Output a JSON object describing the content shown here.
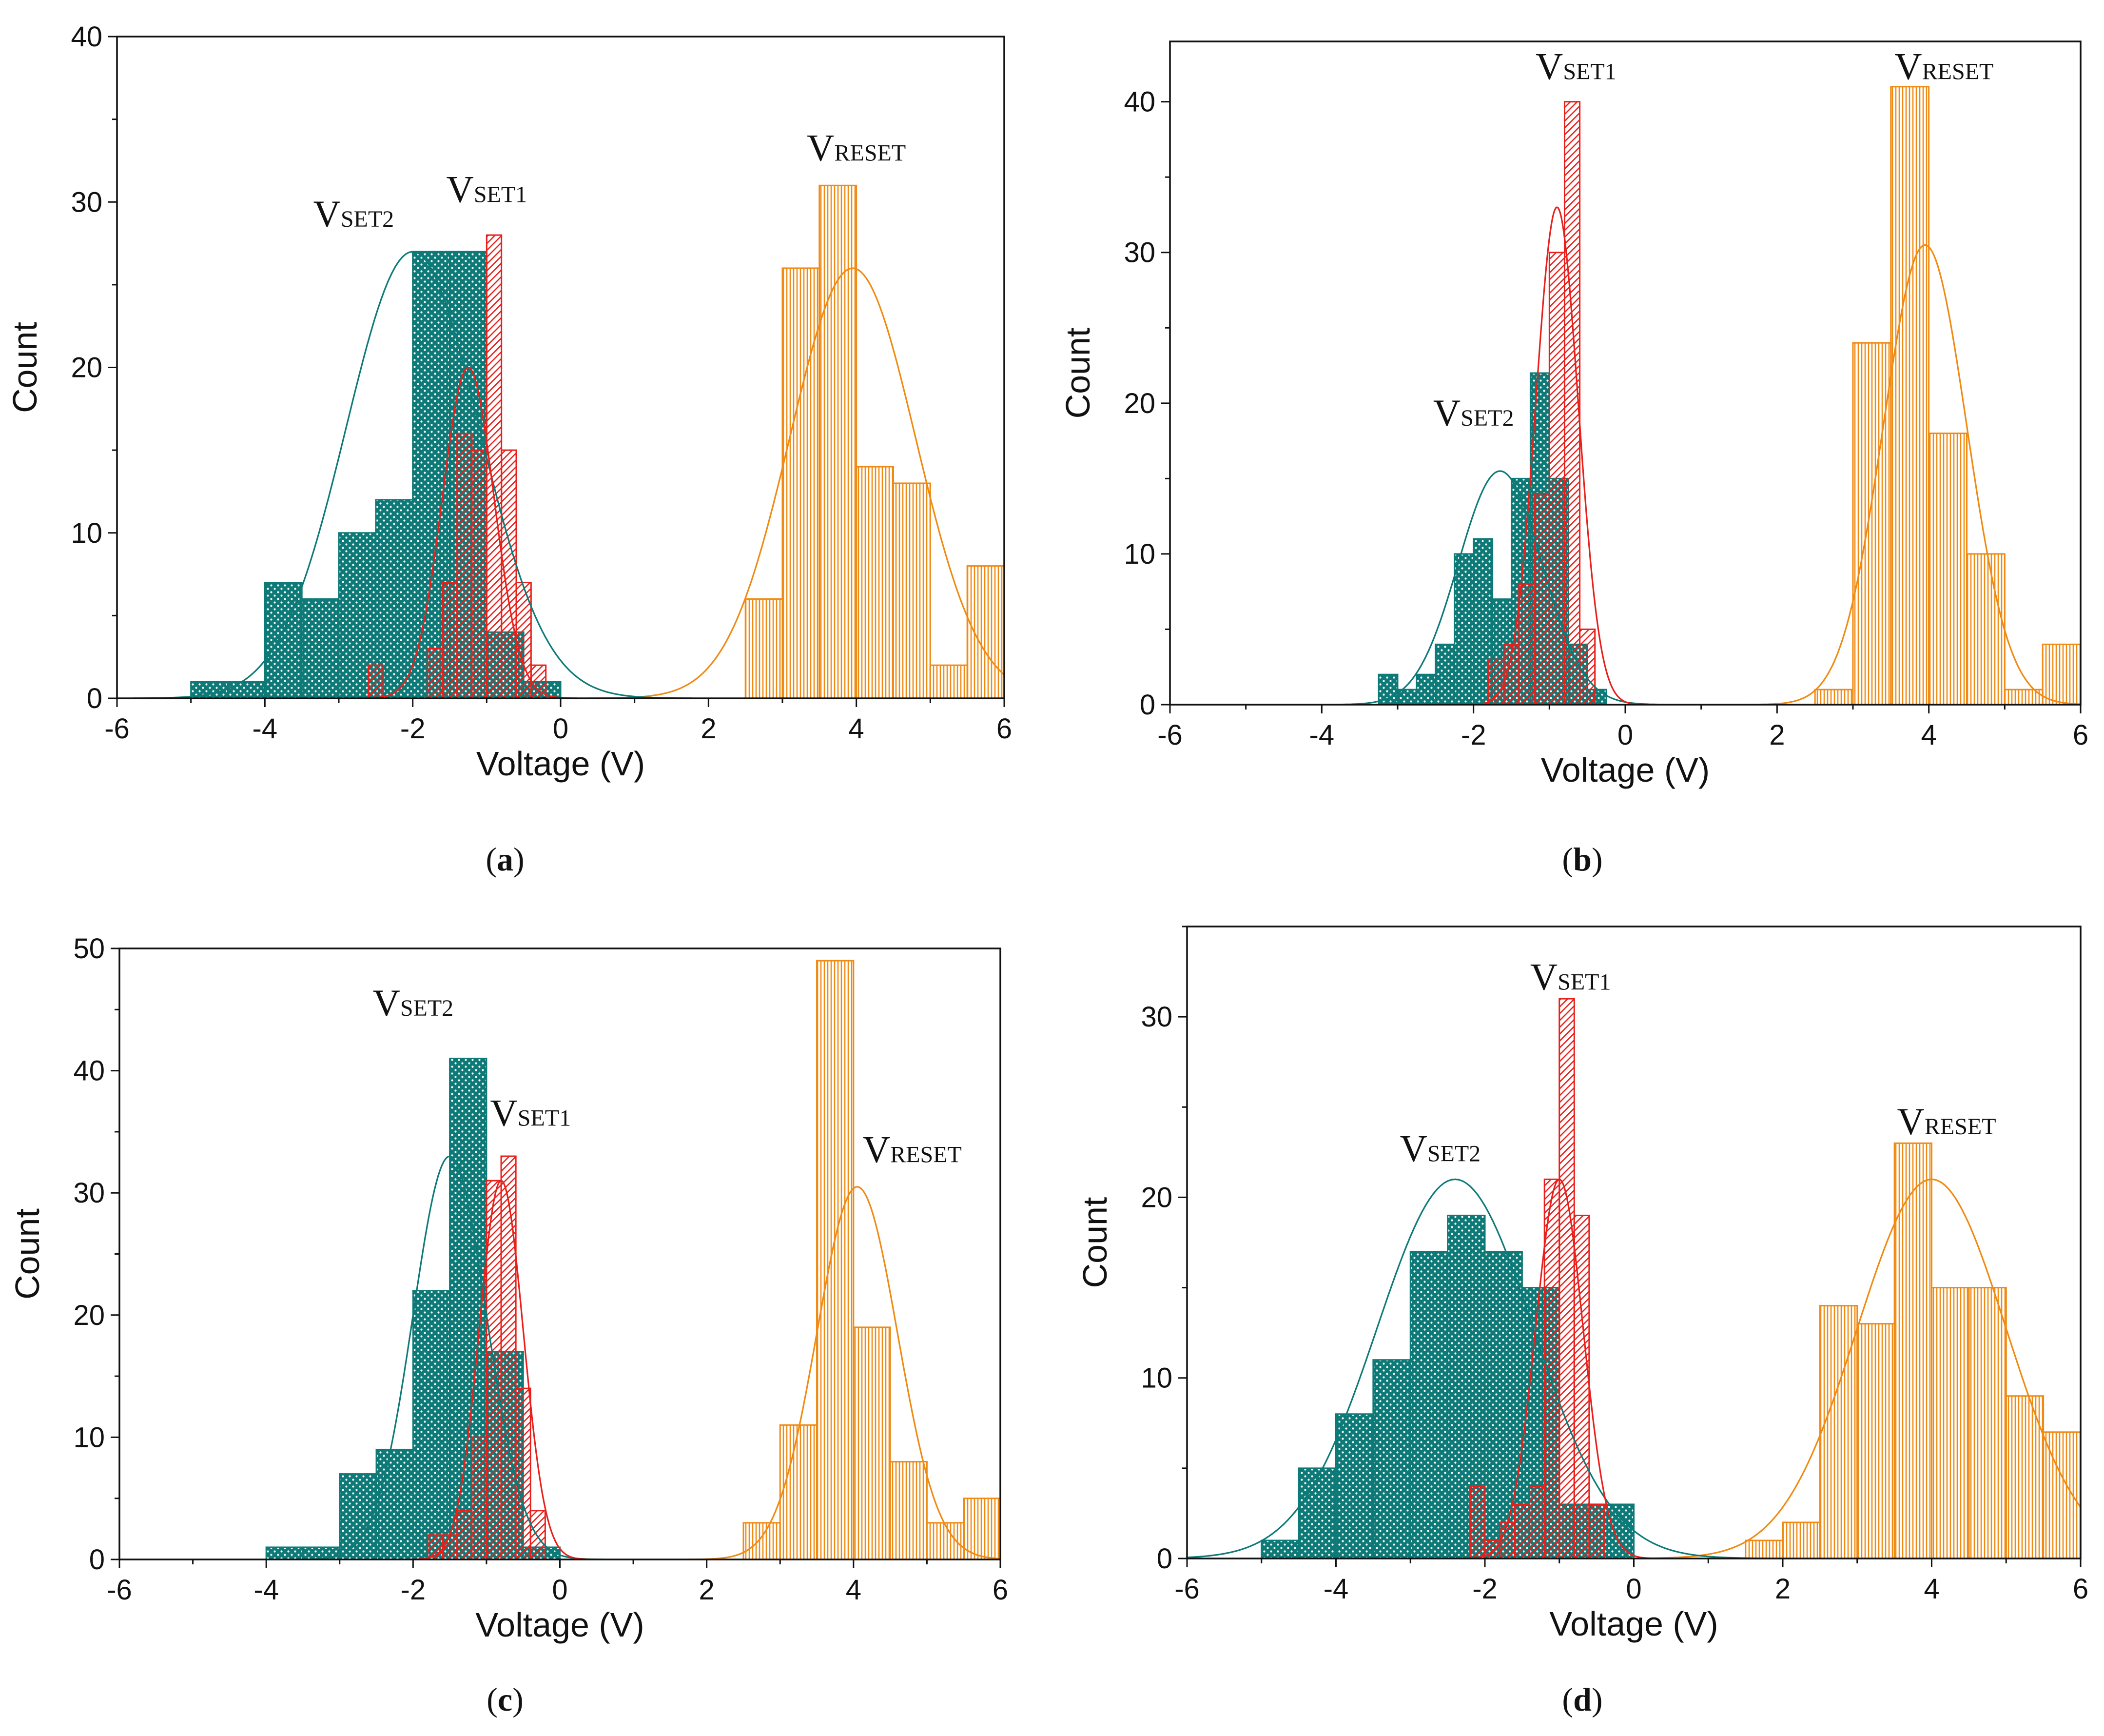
{
  "figure": {
    "colors": {
      "set2": "#0d7a78",
      "set1": "#e8201c",
      "reset": "#f08a12",
      "axis": "#111111"
    },
    "patterns": {
      "set2": "crosshatch-dots",
      "set1": "diagonal-hatch",
      "reset": "vertical-lines"
    }
  },
  "chart_data": [
    {
      "id": "a",
      "type": "bar",
      "caption_letter": "a",
      "xlabel": "Voltage (V)",
      "ylabel": "Count",
      "xlim": [
        -6,
        6
      ],
      "ylim": [
        0,
        40
      ],
      "xticks": [
        -6,
        -4,
        -2,
        0,
        2,
        4,
        6
      ],
      "yticks": [
        0,
        10,
        20,
        30,
        40
      ],
      "series": [
        {
          "name": "V_SET2",
          "label_main": "V",
          "label_sub": "SET2",
          "color": "#0d7a78",
          "bin_width": 0.5,
          "bins": [
            [
              -5.0,
              1
            ],
            [
              -4.5,
              1
            ],
            [
              -4.0,
              7
            ],
            [
              -3.5,
              6
            ],
            [
              -3.0,
              10
            ],
            [
              -2.5,
              12
            ],
            [
              -2.0,
              27
            ],
            [
              -1.5,
              27
            ],
            [
              -1.0,
              4
            ],
            [
              -0.5,
              1
            ]
          ],
          "fit": {
            "mu": -2.0,
            "sigma": 0.9,
            "peak": 27
          }
        },
        {
          "name": "V_SET1",
          "label_main": "V",
          "label_sub": "SET1",
          "color": "#e8201c",
          "bin_width": 0.2,
          "bins": [
            [
              -2.6,
              2
            ],
            [
              -1.8,
              3
            ],
            [
              -1.6,
              7
            ],
            [
              -1.4,
              16
            ],
            [
              -1.2,
              15
            ],
            [
              -1.0,
              28
            ],
            [
              -0.8,
              15
            ],
            [
              -0.6,
              7
            ],
            [
              -0.4,
              2
            ]
          ],
          "fit": {
            "mu": -1.25,
            "sigma": 0.35,
            "peak": 20
          }
        },
        {
          "name": "V_RESET",
          "label_main": "V",
          "label_sub": "RESET",
          "color": "#f08a12",
          "bin_width": 0.5,
          "bins": [
            [
              2.5,
              6
            ],
            [
              3.0,
              26
            ],
            [
              3.5,
              31
            ],
            [
              4.0,
              14
            ],
            [
              4.5,
              13
            ],
            [
              5.0,
              2
            ],
            [
              5.5,
              8
            ]
          ],
          "fit": {
            "mu": 3.95,
            "sigma": 0.85,
            "peak": 26
          }
        }
      ],
      "annotations": [
        {
          "series": "V_SET2",
          "x": -2.8,
          "y": 28.5
        },
        {
          "series": "V_SET1",
          "x": -1.0,
          "y": 30.0
        },
        {
          "series": "V_RESET",
          "x": 4.0,
          "y": 32.5
        }
      ]
    },
    {
      "id": "b",
      "type": "bar",
      "caption_letter": "b",
      "xlabel": "Voltage (V)",
      "ylabel": "Count",
      "xlim": [
        -6,
        6
      ],
      "ylim": [
        0,
        44
      ],
      "xticks": [
        -6,
        -4,
        -2,
        0,
        2,
        4,
        6
      ],
      "yticks": [
        0,
        10,
        20,
        30,
        40
      ],
      "series": [
        {
          "name": "V_SET2",
          "label_main": "V",
          "label_sub": "SET2",
          "color": "#0d7a78",
          "bin_width": 0.25,
          "bins": [
            [
              -3.25,
              2
            ],
            [
              -3.0,
              1
            ],
            [
              -2.75,
              2
            ],
            [
              -2.5,
              4
            ],
            [
              -2.25,
              10
            ],
            [
              -2.0,
              11
            ],
            [
              -1.75,
              7
            ],
            [
              -1.5,
              15
            ],
            [
              -1.25,
              22
            ],
            [
              -1.0,
              15
            ],
            [
              -0.75,
              4
            ],
            [
              -0.5,
              1
            ]
          ],
          "fit": {
            "mu": -1.65,
            "sigma": 0.55,
            "peak": 15.5
          }
        },
        {
          "name": "V_SET1",
          "label_main": "V",
          "label_sub": "SET1",
          "color": "#e8201c",
          "bin_width": 0.2,
          "bins": [
            [
              -1.8,
              3
            ],
            [
              -1.6,
              4
            ],
            [
              -1.4,
              8
            ],
            [
              -1.2,
              14
            ],
            [
              -1.0,
              30
            ],
            [
              -0.8,
              40
            ],
            [
              -0.6,
              5
            ]
          ],
          "fit": {
            "mu": -0.9,
            "sigma": 0.28,
            "peak": 33
          }
        },
        {
          "name": "V_RESET",
          "label_main": "V",
          "label_sub": "RESET",
          "color": "#f08a12",
          "bin_width": 0.5,
          "bins": [
            [
              2.5,
              1
            ],
            [
              3.0,
              24
            ],
            [
              3.5,
              41
            ],
            [
              4.0,
              18
            ],
            [
              4.5,
              10
            ],
            [
              5.0,
              1
            ],
            [
              5.5,
              4
            ]
          ],
          "fit": {
            "mu": 3.95,
            "sigma": 0.55,
            "peak": 30.5
          }
        }
      ],
      "annotations": [
        {
          "series": "V_SET2",
          "x": -2.0,
          "y": 18.5
        },
        {
          "series": "V_SET1",
          "x": -0.65,
          "y": 41.5
        },
        {
          "series": "V_RESET",
          "x": 4.2,
          "y": 41.5
        }
      ]
    },
    {
      "id": "c",
      "type": "bar",
      "caption_letter": "c",
      "xlabel": "Voltage (V)",
      "ylabel": "Count",
      "xlim": [
        -6,
        6
      ],
      "ylim": [
        0,
        50
      ],
      "xticks": [
        -6,
        -4,
        -2,
        0,
        2,
        4,
        6
      ],
      "yticks": [
        0,
        10,
        20,
        30,
        40,
        50
      ],
      "series": [
        {
          "name": "V_SET2",
          "label_main": "V",
          "label_sub": "SET2",
          "color": "#0d7a78",
          "bin_width": 0.5,
          "bins": [
            [
              -4.0,
              1
            ],
            [
              -3.5,
              1
            ],
            [
              -3.0,
              7
            ],
            [
              -2.5,
              9
            ],
            [
              -2.0,
              22
            ],
            [
              -1.5,
              41
            ],
            [
              -1.0,
              17
            ],
            [
              -0.5,
              1
            ]
          ],
          "fit": {
            "mu": -1.5,
            "sigma": 0.5,
            "peak": 33
          }
        },
        {
          "name": "V_SET1",
          "label_main": "V",
          "label_sub": "SET1",
          "color": "#e8201c",
          "bin_width": 0.2,
          "bins": [
            [
              -1.8,
              2
            ],
            [
              -1.6,
              2
            ],
            [
              -1.4,
              4
            ],
            [
              -1.2,
              10
            ],
            [
              -1.0,
              31
            ],
            [
              -0.8,
              33
            ],
            [
              -0.6,
              14
            ],
            [
              -0.4,
              4
            ]
          ],
          "fit": {
            "mu": -0.8,
            "sigma": 0.3,
            "peak": 31
          }
        },
        {
          "name": "V_RESET",
          "label_main": "V",
          "label_sub": "RESET",
          "color": "#f08a12",
          "bin_width": 0.5,
          "bins": [
            [
              2.5,
              3
            ],
            [
              3.0,
              11
            ],
            [
              3.5,
              49
            ],
            [
              4.0,
              19
            ],
            [
              4.5,
              8
            ],
            [
              5.0,
              3
            ],
            [
              5.5,
              5
            ]
          ],
          "fit": {
            "mu": 4.05,
            "sigma": 0.55,
            "peak": 30.5
          }
        }
      ],
      "annotations": [
        {
          "series": "V_SET2",
          "x": -2.0,
          "y": 44.5
        },
        {
          "series": "V_SET1",
          "x": -0.4,
          "y": 35.5
        },
        {
          "series": "V_RESET",
          "x": 4.8,
          "y": 32.5
        }
      ]
    },
    {
      "id": "d",
      "type": "bar",
      "caption_letter": "d",
      "xlabel": "Voltage (V)",
      "ylabel": "Count",
      "xlim": [
        -6,
        6
      ],
      "ylim": [
        0,
        35
      ],
      "xticks": [
        -6,
        -4,
        -2,
        0,
        2,
        4,
        6
      ],
      "yticks": [
        0,
        10,
        20,
        30
      ],
      "series": [
        {
          "name": "V_SET2",
          "label_main": "V",
          "label_sub": "SET2",
          "color": "#0d7a78",
          "bin_width": 0.5,
          "bins": [
            [
              -5.5,
              0
            ],
            [
              -5.0,
              1
            ],
            [
              -4.5,
              5
            ],
            [
              -4.0,
              8
            ],
            [
              -3.5,
              11
            ],
            [
              -3.0,
              17
            ],
            [
              -2.5,
              19
            ],
            [
              -2.0,
              17
            ],
            [
              -1.5,
              15
            ],
            [
              -1.0,
              3
            ],
            [
              -0.5,
              3
            ]
          ],
          "fit": {
            "mu": -2.4,
            "sigma": 1.05,
            "peak": 21
          }
        },
        {
          "name": "V_SET1",
          "label_main": "V",
          "label_sub": "SET1",
          "color": "#e8201c",
          "bin_width": 0.2,
          "bins": [
            [
              -2.2,
              4
            ],
            [
              -2.0,
              1
            ],
            [
              -1.8,
              2
            ],
            [
              -1.6,
              3
            ],
            [
              -1.4,
              4
            ],
            [
              -1.2,
              21
            ],
            [
              -1.0,
              31
            ],
            [
              -0.8,
              19
            ],
            [
              -0.6,
              3
            ]
          ],
          "fit": {
            "mu": -1.0,
            "sigma": 0.32,
            "peak": 21
          }
        },
        {
          "name": "V_RESET",
          "label_main": "V",
          "label_sub": "RESET",
          "color": "#f08a12",
          "bin_width": 0.5,
          "bins": [
            [
              1.5,
              1
            ],
            [
              2.0,
              2
            ],
            [
              2.5,
              14
            ],
            [
              3.0,
              13
            ],
            [
              3.5,
              23
            ],
            [
              4.0,
              15
            ],
            [
              4.5,
              15
            ],
            [
              5.0,
              9
            ],
            [
              5.5,
              7
            ]
          ],
          "fit": {
            "mu": 4.0,
            "sigma": 1.0,
            "peak": 21
          }
        }
      ],
      "annotations": [
        {
          "series": "V_SET2",
          "x": -2.6,
          "y": 22.0
        },
        {
          "series": "V_SET1",
          "x": -0.85,
          "y": 31.5
        },
        {
          "series": "V_RESET",
          "x": 4.2,
          "y": 23.5
        }
      ]
    }
  ]
}
